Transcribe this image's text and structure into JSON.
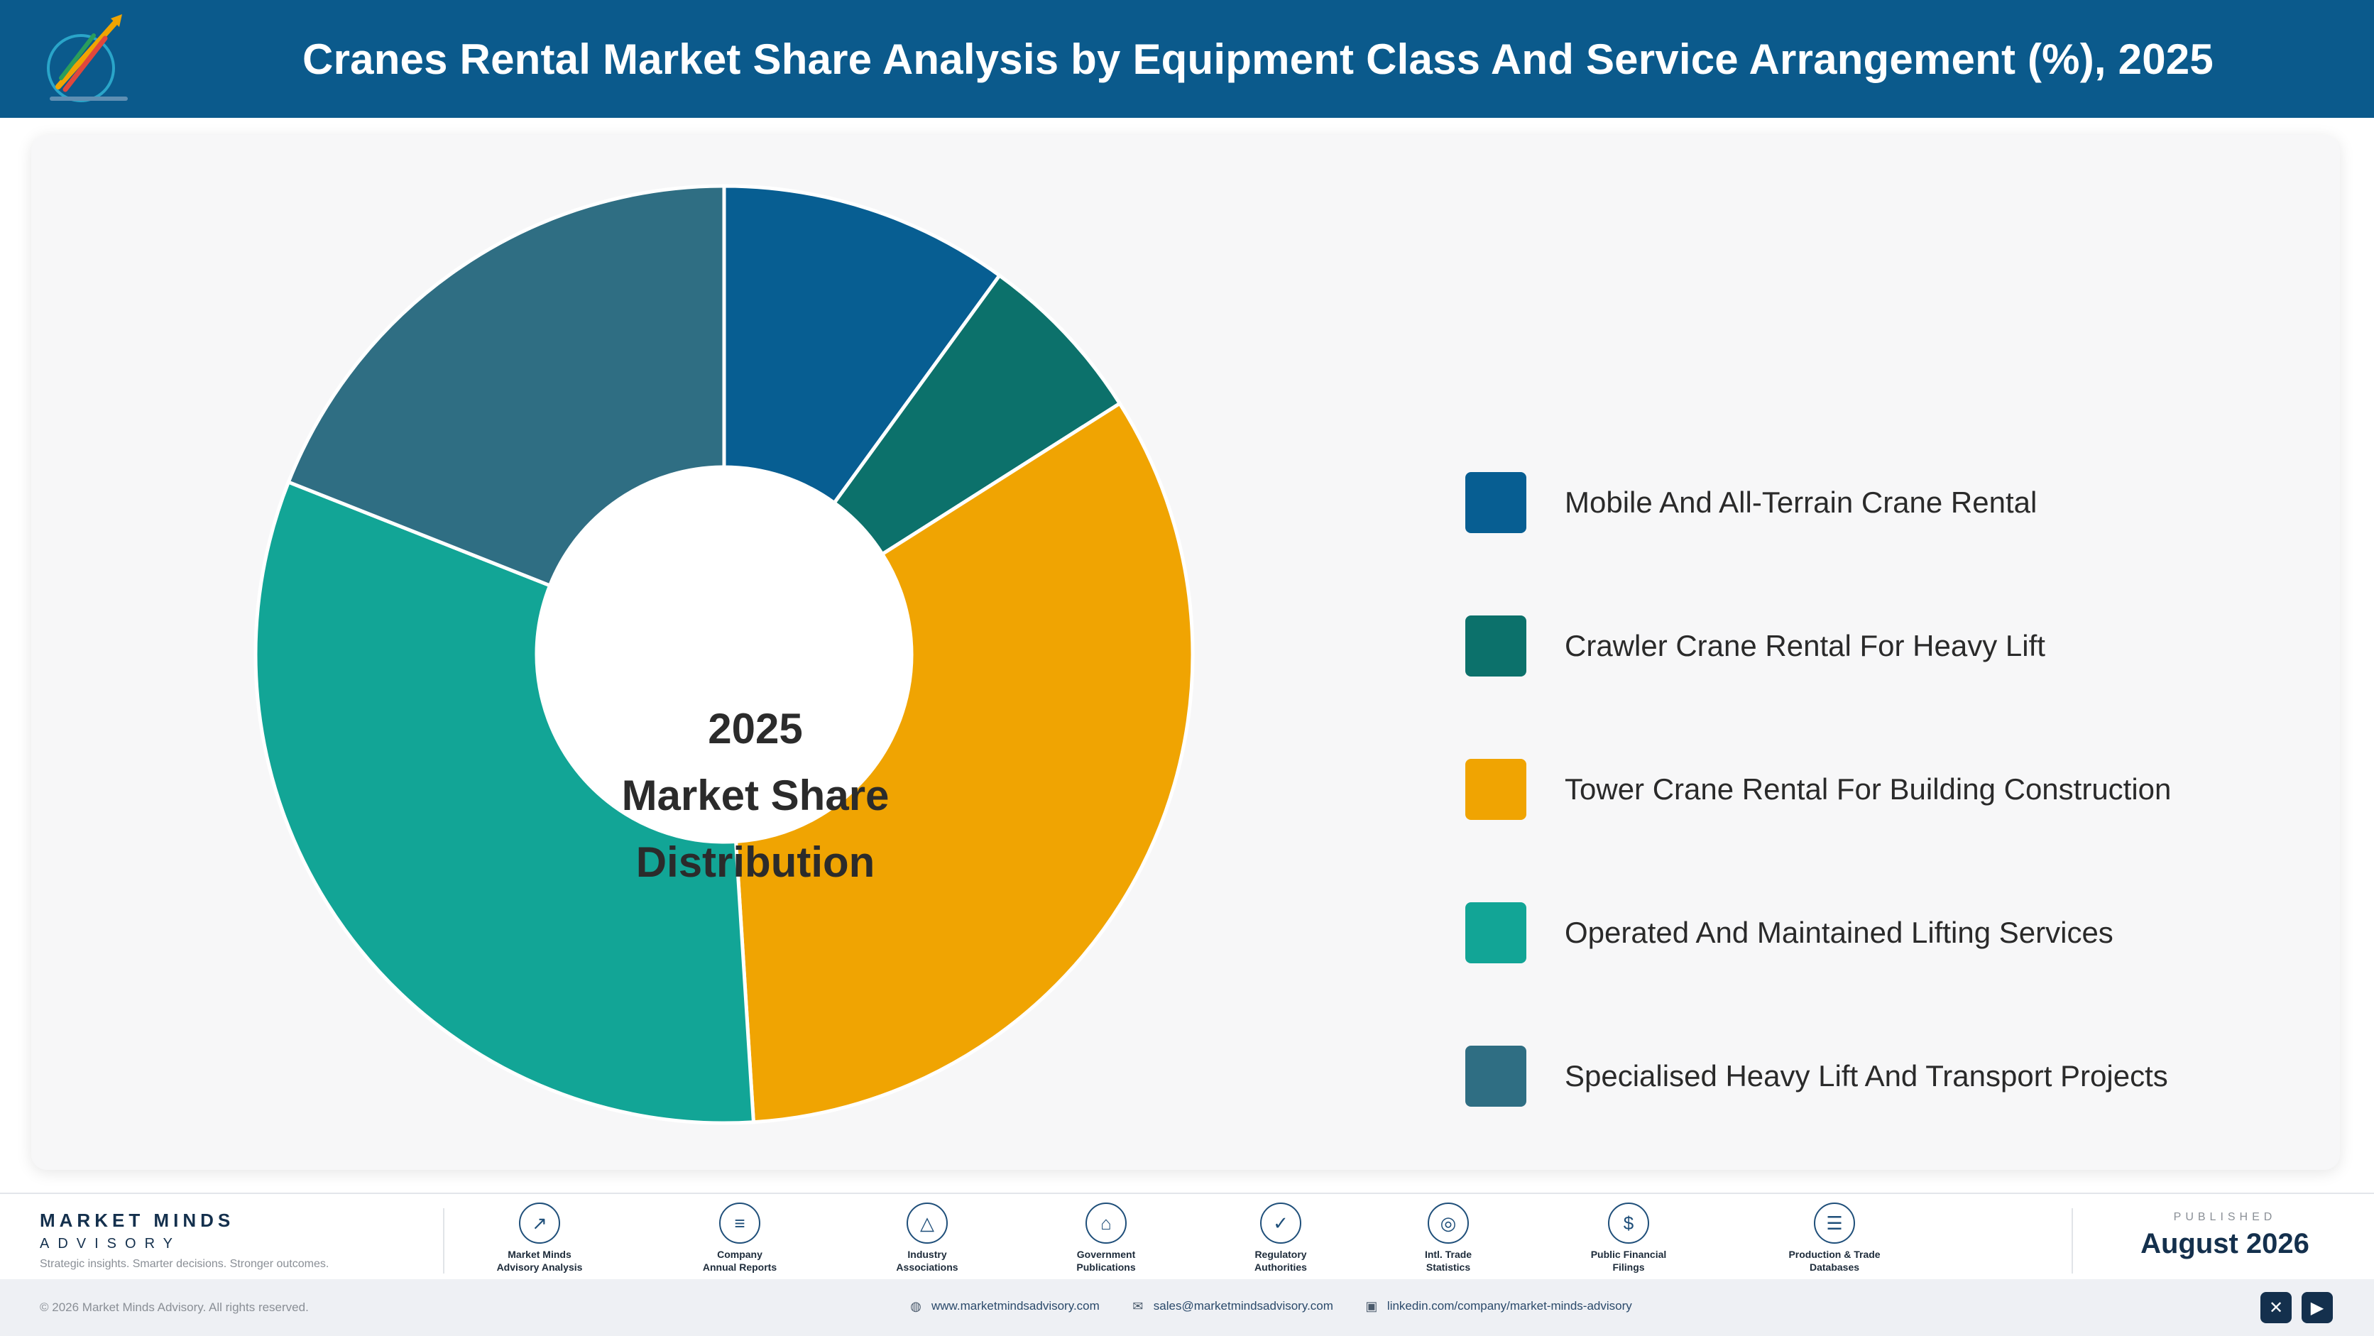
{
  "header": {
    "title": "Cranes Rental Market Share Analysis by Equipment Class And Service Arrangement (%), 2025",
    "logo_icon": "market-minds-logo-icon",
    "background_color": "#0b5a8c"
  },
  "center_label": [
    "2025",
    "Market Share",
    "Distribution"
  ],
  "chart_data": {
    "type": "pie",
    "variant": "donut",
    "title": "",
    "legend_position": "right",
    "series": [
      {
        "name": "Mobile And All-Terrain Crane Rental",
        "value": 10,
        "color": "#075e92"
      },
      {
        "name": "Crawler Crane Rental For Heavy Lift",
        "value": 6,
        "color": "#0c716b"
      },
      {
        "name": "Tower Crane Rental For Building Construction",
        "value": 33,
        "color": "#f0a402"
      },
      {
        "name": "Operated And Maintained Lifting Services",
        "value": 32,
        "color": "#12a596"
      },
      {
        "name": "Specialised Heavy Lift And Transport Projects",
        "value": 19,
        "color": "#2f6e83"
      }
    ]
  },
  "footer": {
    "brand_name": "MARKET MINDS",
    "brand_sub": "ADVISORY",
    "brand_tagline": "Strategic insights. Smarter decisions. Stronger outcomes.",
    "sources": [
      {
        "label1": "Market Minds",
        "label2": "Advisory Analysis",
        "icon": "trend-chart-icon",
        "glyph": "↗"
      },
      {
        "label1": "Company",
        "label2": "Annual Reports",
        "icon": "document-icon",
        "glyph": "≡"
      },
      {
        "label1": "Industry",
        "label2": "Associations",
        "icon": "network-icon",
        "glyph": "△"
      },
      {
        "label1": "Government",
        "label2": "Publications",
        "icon": "government-building-icon",
        "glyph": "⌂"
      },
      {
        "label1": "Regulatory",
        "label2": "Authorities",
        "icon": "shield-check-icon",
        "glyph": "✓"
      },
      {
        "label1": "Intl. Trade",
        "label2": "Statistics",
        "icon": "globe-icon",
        "glyph": "◎"
      },
      {
        "label1": "Public Financial",
        "label2": "Filings",
        "icon": "currency-icon",
        "glyph": "$"
      },
      {
        "label1": "Production & Trade",
        "label2": "Databases",
        "icon": "database-icon",
        "glyph": "☰"
      }
    ],
    "published_label": "PUBLISHED",
    "published_date": "August 2026"
  },
  "bottom": {
    "copyright": "© 2026 Market Minds Advisory. All rights reserved.",
    "website": "www.marketmindsadvisory.com",
    "email": "sales@marketmindsadvisory.com",
    "linkedin": "linkedin.com/company/market-minds-advisory",
    "social": [
      {
        "icon": "x-social-icon",
        "glyph": "✕"
      },
      {
        "icon": "youtube-icon",
        "glyph": "▶"
      }
    ]
  }
}
